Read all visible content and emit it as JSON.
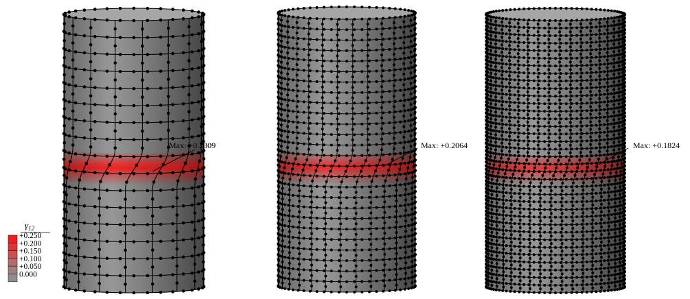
{
  "legend": {
    "symbol": "γ",
    "subscript": "12",
    "entries": [
      {
        "value": "+0.250",
        "color": "#ee1f1f"
      },
      {
        "value": "+0.200",
        "color": "#e23434"
      },
      {
        "value": "+0.150",
        "color": "#cf4f4f"
      },
      {
        "value": "+0.100",
        "color": "#b86a6a"
      },
      {
        "value": "+0.050",
        "color": "#a27f7f"
      },
      {
        "value": "0.000",
        "color": "#8e8e8e"
      }
    ]
  },
  "cylinders": [
    {
      "mesh": "coarse",
      "max_label": "Max: +0.2309",
      "max_value": 0.2309,
      "circumferential_points": 9,
      "axial_divisions": 16,
      "band_twist_degrees": 14
    },
    {
      "mesh": "medium",
      "max_label": "Max: +0.2064",
      "max_value": 0.2064,
      "circumferential_points": 15,
      "axial_divisions": 26,
      "band_twist_degrees": 10
    },
    {
      "mesh": "fine",
      "max_label": "Max: +0.1824",
      "max_value": 0.1824,
      "circumferential_points": 21,
      "axial_divisions": 36,
      "band_twist_degrees": 7
    }
  ]
}
